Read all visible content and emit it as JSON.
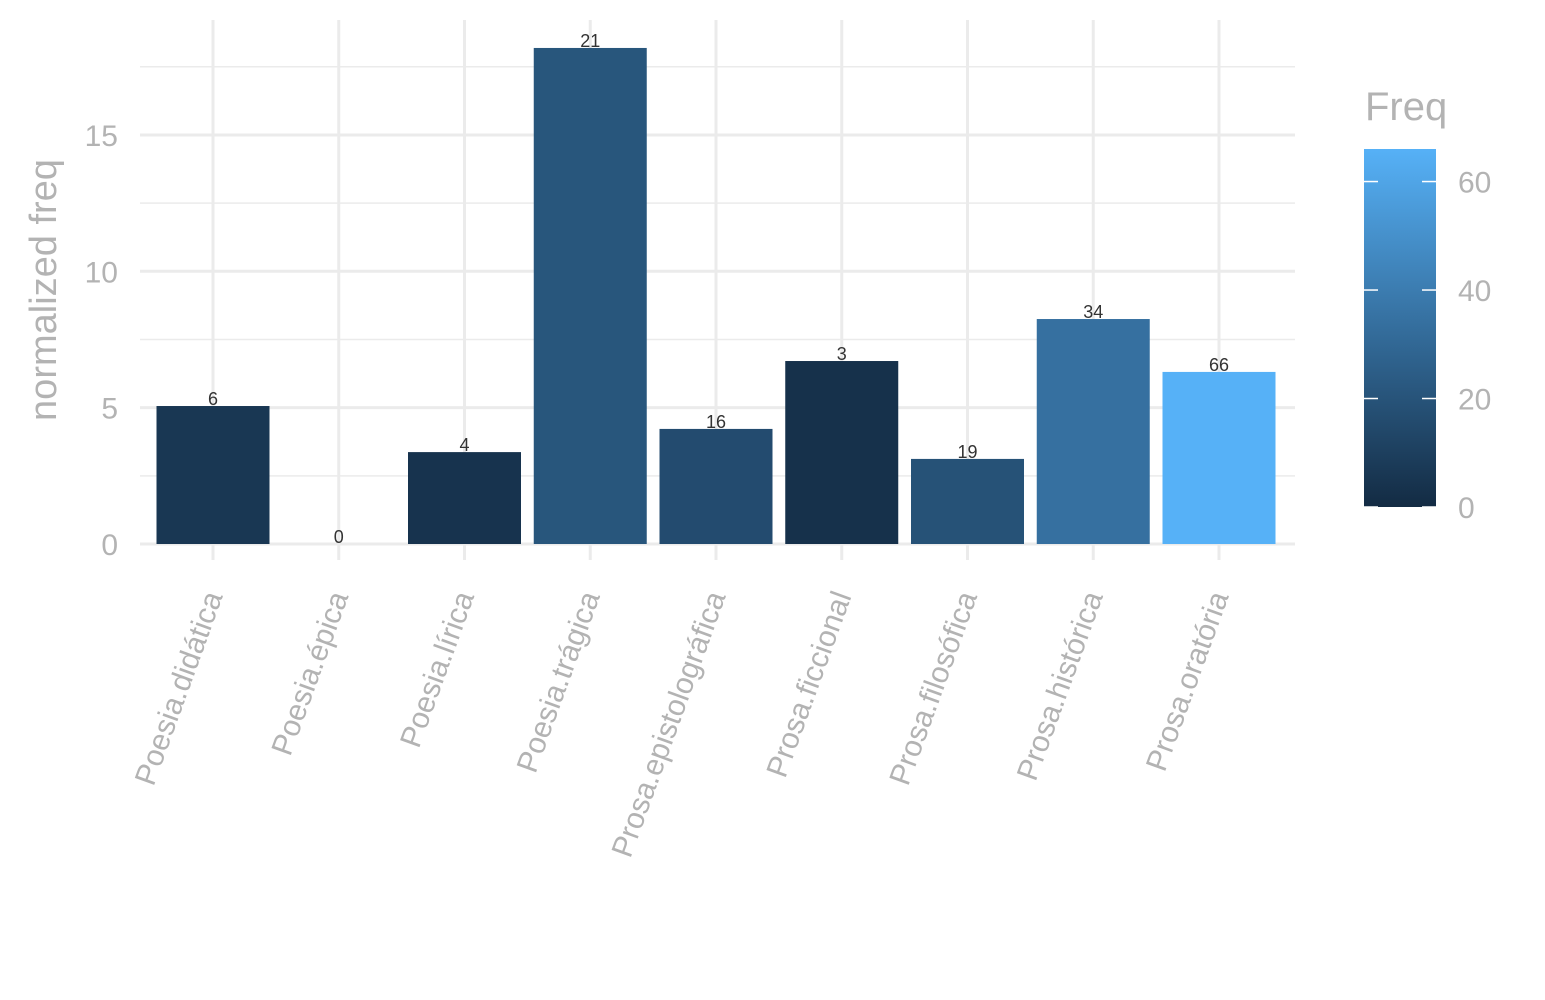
{
  "chart_data": {
    "type": "bar",
    "categories": [
      "Poesia.didática",
      "Poesia.épica",
      "Poesia.lírica",
      "Poesia.trágica",
      "Prosa.epistolográfica",
      "Prosa.ficcional",
      "Prosa.filosófica",
      "Prosa.histórica",
      "Prosa.oratória"
    ],
    "values": [
      5.06,
      0,
      3.37,
      18.19,
      4.22,
      6.71,
      3.12,
      8.25,
      6.31
    ],
    "fill_values": [
      6,
      0,
      4,
      21,
      16,
      3,
      19,
      34,
      66
    ],
    "data_labels": [
      "6",
      "0",
      "4",
      "21",
      "16",
      "3",
      "19",
      "34",
      "66"
    ],
    "title": "",
    "xlabel": "",
    "ylabel": "normalized freq",
    "ylim": [
      0,
      19.2
    ],
    "yticks": [
      0,
      5,
      10,
      15
    ],
    "ytick_labels": [
      "0",
      "5",
      "10",
      "15"
    ],
    "grid": true,
    "legend": {
      "title": "Freq",
      "position": "right",
      "type": "colorbar",
      "range": [
        0,
        66
      ],
      "ticks": [
        0,
        20,
        40,
        60
      ],
      "tick_labels": [
        "0",
        "20",
        "40",
        "60"
      ],
      "low_color": "#132B43",
      "high_color": "#56B1F7"
    },
    "x_label_rotation_deg": 70
  }
}
